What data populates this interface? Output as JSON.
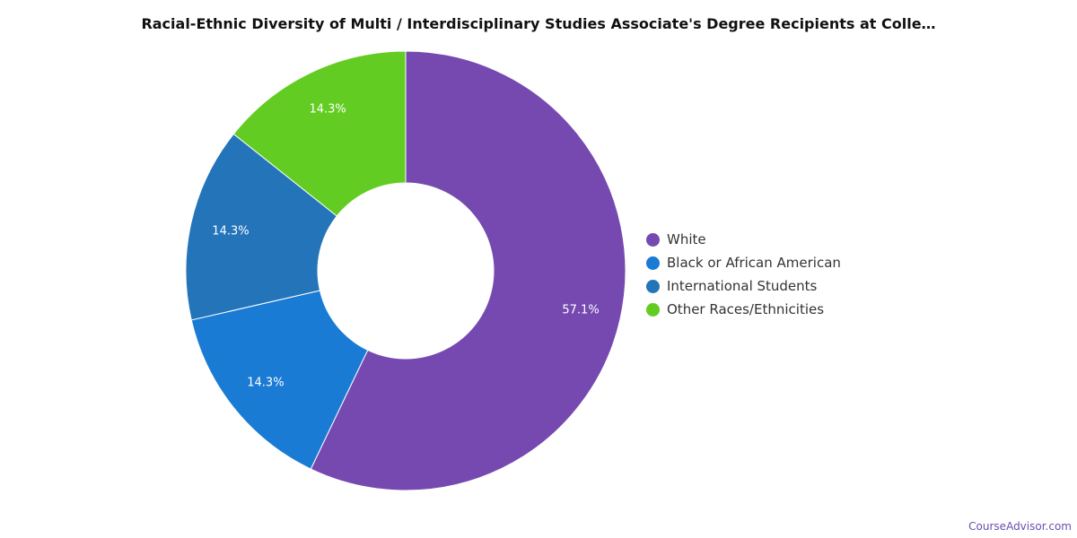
{
  "chart_data": {
    "type": "pie",
    "title": "Racial-Ethnic Diversity of Multi / Interdisciplinary Studies Associate's Degree Recipients at Colle…",
    "categories": [
      "White",
      "Black or African American",
      "International Students",
      "Other Races/Ethnicities"
    ],
    "values": [
      57.1,
      14.3,
      14.3,
      14.3
    ],
    "labels": [
      "57.1%",
      "14.3%",
      "14.3%",
      "14.3%"
    ],
    "colors": [
      "#7649b0",
      "#1a7bd4",
      "#2474b9",
      "#63cc22"
    ],
    "donut": true,
    "legend_position": "right"
  },
  "watermark": "CourseAdvisor.com"
}
